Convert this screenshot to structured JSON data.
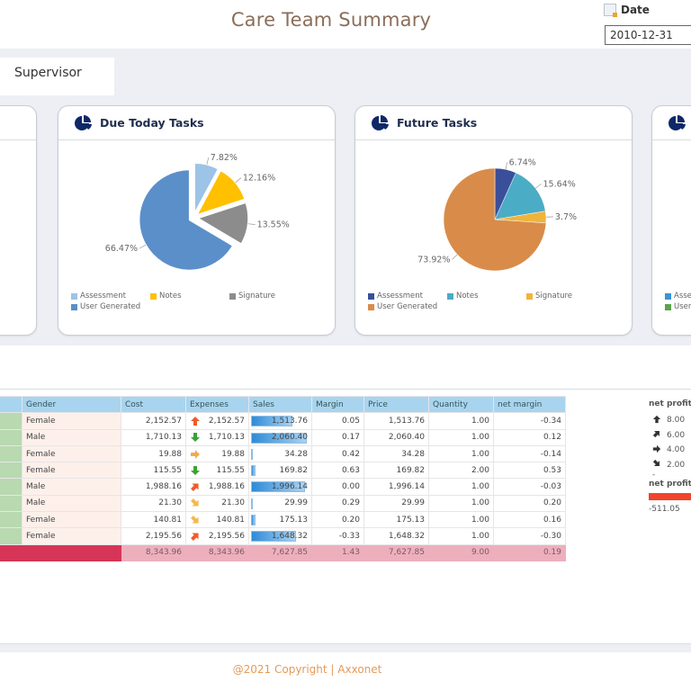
{
  "header": {
    "title": "Care Team  Summary",
    "date_label": "Date",
    "date_value": "2010-12-31"
  },
  "tabs": [
    {
      "label": "Supervisor"
    }
  ],
  "cards": [
    {
      "title": "Due Today Tasks",
      "icon": "pie-chart-icon"
    },
    {
      "title": "Future Tasks",
      "icon": "pie-chart-icon"
    },
    {
      "title": "",
      "icon": "pie-chart-icon",
      "legend_partial": [
        "Asse",
        "User"
      ]
    }
  ],
  "chart_data": [
    {
      "type": "pie",
      "title": "Due Today Tasks",
      "categories": [
        "Assessment",
        "Notes",
        "Signature",
        "User Generated"
      ],
      "values": [
        7.82,
        12.16,
        13.55,
        66.47
      ],
      "labels": [
        "7.82%",
        "12.16%",
        "13.55%",
        "66.47%"
      ],
      "colors": [
        "#9dc3e6",
        "#ffc000",
        "#8c8c8c",
        "#5b8fc9"
      ],
      "exploded": true,
      "legend": "bottom"
    },
    {
      "type": "pie",
      "title": "Future Tasks",
      "categories": [
        "Assessment",
        "Notes",
        "Signature",
        "User Generated"
      ],
      "values": [
        6.74,
        15.64,
        3.7,
        73.92
      ],
      "labels": [
        "6.74%",
        "15.64%",
        "3.7%",
        "73.92%"
      ],
      "colors": [
        "#3a4f9a",
        "#4bacc6",
        "#f0b43c",
        "#d98c49"
      ],
      "exploded": false,
      "legend": "bottom"
    }
  ],
  "table": {
    "columns": [
      "Gender",
      "Cost",
      "Expenses",
      "Sales",
      "Margin",
      "Price",
      "Quantity",
      "net margin"
    ],
    "rows": [
      {
        "gender": "Female",
        "cost": "2,152.57",
        "exp_icon": "up",
        "expenses": "2,152.57",
        "sales": "1,513.76",
        "sales_value": 1513.76,
        "margin": "0.05",
        "price": "1,513.76",
        "quantity": "1.00",
        "net_margin": "-0.34"
      },
      {
        "gender": "Male",
        "cost": "1,710.13",
        "exp_icon": "down",
        "expenses": "1,710.13",
        "sales": "2,060.40",
        "sales_value": 2060.4,
        "margin": "0.17",
        "price": "2,060.40",
        "quantity": "1.00",
        "net_margin": "0.12"
      },
      {
        "gender": "Female",
        "cost": "19.88",
        "exp_icon": "right",
        "expenses": "19.88",
        "sales": "34.28",
        "sales_value": 34.28,
        "margin": "0.42",
        "price": "34.28",
        "quantity": "1.00",
        "net_margin": "-0.14"
      },
      {
        "gender": "Female",
        "cost": "115.55",
        "exp_icon": "down",
        "expenses": "115.55",
        "sales": "169.82",
        "sales_value": 169.82,
        "margin": "0.63",
        "price": "169.82",
        "quantity": "2.00",
        "net_margin": "0.53"
      },
      {
        "gender": "Male",
        "cost": "1,988.16",
        "exp_icon": "up-right",
        "expenses": "1,988.16",
        "sales": "1,996.14",
        "sales_value": 1996.14,
        "margin": "0.00",
        "price": "1,996.14",
        "quantity": "1.00",
        "net_margin": "-0.03"
      },
      {
        "gender": "Male",
        "cost": "21.30",
        "exp_icon": "down-right",
        "expenses": "21.30",
        "sales": "29.99",
        "sales_value": 29.99,
        "margin": "0.29",
        "price": "29.99",
        "quantity": "1.00",
        "net_margin": "0.20"
      },
      {
        "gender": "Female",
        "cost": "140.81",
        "exp_icon": "down-right",
        "expenses": "140.81",
        "sales": "175.13",
        "sales_value": 175.13,
        "margin": "0.20",
        "price": "175.13",
        "quantity": "1.00",
        "net_margin": "0.16"
      },
      {
        "gender": "Female",
        "cost": "2,195.56",
        "exp_icon": "up-right",
        "expenses": "2,195.56",
        "sales": "1,648.32",
        "sales_value": 1648.32,
        "margin": "-0.33",
        "price": "1,648.32",
        "quantity": "1.00",
        "net_margin": "-0.30"
      }
    ],
    "total": {
      "cost": "8,343.96",
      "expenses": "8,343.96",
      "sales": "7,627.85",
      "margin": "1.43",
      "price": "7,627.85",
      "quantity": "9.00",
      "net_margin": "0.19"
    },
    "sales_max": 2060.4
  },
  "kpi": {
    "title": "net profit",
    "legend": [
      {
        "icon": "up",
        "value": "8.00"
      },
      {
        "icon": "up-right",
        "value": "6.00"
      },
      {
        "icon": "right",
        "value": "4.00"
      },
      {
        "icon": "down-right",
        "value": "2.00"
      }
    ],
    "dash": "-",
    "title2": "net profit",
    "value": "-511.05",
    "bar_color": "#f0442c"
  },
  "footer": {
    "copyright": "@2021 Copyright | Axxonet"
  }
}
